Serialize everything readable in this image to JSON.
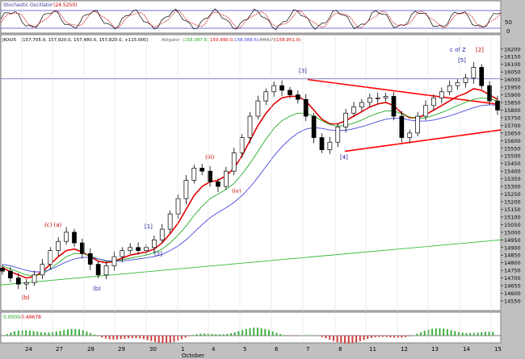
{
  "colors": {
    "panel_bg": "#ffffff",
    "frame": "#c0c0c0",
    "price_line": "#000000",
    "ma_red": "#e00000",
    "ma_green": "#22aa22",
    "ma_blue": "#4848e0",
    "trendline": "#ff0000",
    "support_line": "#33bb33",
    "ref_line": "#7070c0",
    "wave_blue": "#1a1a9a",
    "wave_red": "#cc0000",
    "hist_red": "#d04040",
    "hist_green": "#40b040",
    "stoch_black": "#000000",
    "stoch_red": "#cc0000"
  },
  "stochastic": {
    "title": "Stochastic Oscillator",
    "value": "(24.5250)",
    "axis_ticks": [
      "50",
      "0"
    ]
  },
  "price_panel": {
    "header_symbol": "JNXU5",
    "ohlc": "(157,705.0, 157,920.0, 157,480.0, 157,820.0, +115.000)",
    "alligator_label": "Alligator",
    "alligator_values": "(158,087.8,",
    "alligator_v2": "159,990.0,",
    "alligator_v3": "158,988.6)",
    "ama_label": "AMA(?)",
    "ama_value": "(158,951.0)"
  },
  "macd": {
    "label_green": "0.0000",
    "label_red": "-0.49678"
  },
  "chart_data": {
    "type": "line",
    "title": "",
    "xlabel": "",
    "ylabel": "",
    "x_tick_labels": [
      "24",
      "27",
      "28",
      "29",
      "30",
      "1",
      "4",
      "5",
      "6",
      "7",
      "8",
      "11",
      "12",
      "13",
      "14",
      "15"
    ],
    "month_label": "October",
    "y_tick_labels": [
      "14550",
      "14600",
      "14650",
      "14700",
      "14750",
      "14800",
      "14850",
      "14900",
      "14950",
      "15000",
      "15050",
      "15100",
      "15150",
      "15200",
      "15250",
      "15300",
      "15350",
      "15400",
      "15450",
      "15500",
      "15550",
      "15600",
      "15650",
      "15700",
      "15750",
      "15800",
      "15850",
      "15900",
      "15950",
      "16000",
      "16050",
      "16100",
      "16150",
      "16200"
    ],
    "ylim": [
      14550,
      16220
    ],
    "series": [
      {
        "values": [
          14745,
          14700,
          14660,
          14670,
          14720,
          14790,
          14880,
          14940,
          15000,
          14930,
          14860,
          14790,
          14720,
          14780,
          14840,
          14880,
          14900,
          14880,
          14900,
          14950,
          15020,
          15120,
          15220,
          15340,
          15420,
          15400,
          15330,
          15300,
          15400,
          15520,
          15620,
          15760,
          15860,
          15920,
          15960,
          15930,
          15900,
          15870,
          15760,
          15620,
          15540,
          15590,
          15690,
          15780,
          15820,
          15850,
          15880,
          15880,
          15890,
          15760,
          15620,
          15650,
          15760,
          15830,
          15880,
          15920,
          15960,
          15980,
          16010,
          16080,
          15960,
          15860,
          15800
        ]
      },
      {
        "values": [
          14770,
          14740,
          14720,
          14700,
          14710,
          14740,
          14790,
          14840,
          14880,
          14890,
          14870,
          14840,
          14810,
          14800,
          14810,
          14830,
          14850,
          14860,
          14870,
          14890,
          14930,
          14990,
          15060,
          15150,
          15240,
          15300,
          15330,
          15340,
          15370,
          15420,
          15500,
          15600,
          15700,
          15780,
          15840,
          15880,
          15890,
          15890,
          15860,
          15800,
          15740,
          15710,
          15710,
          15730,
          15760,
          15790,
          15820,
          15840,
          15850,
          15830,
          15780,
          15750,
          15750,
          15770,
          15800,
          15830,
          15860,
          15890,
          15910,
          15940,
          15930,
          15900,
          15870
        ]
      },
      {
        "values": [
          14780,
          14760,
          14740,
          14720,
          14715,
          14725,
          14760,
          14800,
          14840,
          14860,
          14860,
          14845,
          14825,
          14810,
          14810,
          14820,
          14830,
          14840,
          14850,
          14865,
          14890,
          14930,
          14980,
          15040,
          15110,
          15170,
          15220,
          15250,
          15280,
          15320,
          15380,
          15450,
          15530,
          15610,
          15680,
          15730,
          15760,
          15780,
          15780,
          15760,
          15730,
          15705,
          15695,
          15700,
          15715,
          15735,
          15760,
          15780,
          15795,
          15795,
          15775,
          15755,
          15745,
          15750,
          15765,
          15785,
          15805,
          15830,
          15850,
          15870,
          15880,
          15875,
          15860
        ]
      },
      {
        "values": [
          14790,
          14780,
          14765,
          14750,
          14740,
          14740,
          14755,
          14780,
          14805,
          14825,
          14835,
          14835,
          14825,
          14815,
          14810,
          14812,
          14818,
          14825,
          14832,
          14840,
          14855,
          14880,
          14910,
          14950,
          15000,
          15050,
          15095,
          15130,
          15160,
          15195,
          15240,
          15295,
          15360,
          15430,
          15500,
          15560,
          15610,
          15650,
          15675,
          15685,
          15680,
          15670,
          15665,
          15668,
          15678,
          15692,
          15708,
          15725,
          15740,
          15748,
          15745,
          15735,
          15728,
          15728,
          15735,
          15748,
          15762,
          15780,
          15798,
          15815,
          15830,
          15835,
          15832
        ]
      }
    ],
    "trendlines": [
      {
        "values": [
          16000,
          15840
        ]
      },
      {
        "values": [
          15530,
          15670
        ]
      },
      {
        "values": [
          14655,
          14950
        ]
      },
      {
        "values": [
          16005,
          16005
        ]
      }
    ],
    "wave_labels": [
      {
        "text": "(c) (a)",
        "color": "red_blue"
      },
      {
        "text": "(b)",
        "color": "red"
      },
      {
        "text": "(b)",
        "color": "blue"
      },
      {
        "text": "[1]",
        "color": "blue"
      },
      {
        "text": "[2]",
        "color": "blue"
      },
      {
        "text": "(iii)",
        "color": "red"
      },
      {
        "text": "(iv)",
        "color": "red"
      },
      {
        "text": "[3]",
        "color": "blue"
      },
      {
        "text": "[4]",
        "color": "blue"
      },
      {
        "text": "[5]",
        "color": "blue"
      },
      {
        "text": "c of Z",
        "color": "blue"
      },
      {
        "text": "[2]",
        "color": "red"
      }
    ]
  }
}
